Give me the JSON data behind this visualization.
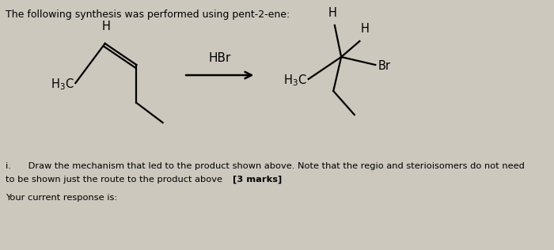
{
  "bg_color": "#ccc8be",
  "title_text": "The following synthesis was performed using pent-2-ene:",
  "title_fontsize": 9.0,
  "reagent_text": "HBr",
  "reagent_fontsize": 11,
  "instruction_line1": "i.      Draw the mechanism that led to the product shown above. Note that the regio and sterioisomers do not need",
  "instruction_line2": "to be shown just the route to the product above ",
  "instruction_line2_bold": "[3 marks]",
  "instruction_line3": "Your current response is:",
  "instr_fontsize": 8.2,
  "mol_fontsize": 10.5,
  "sub_fontsize": 8.5
}
